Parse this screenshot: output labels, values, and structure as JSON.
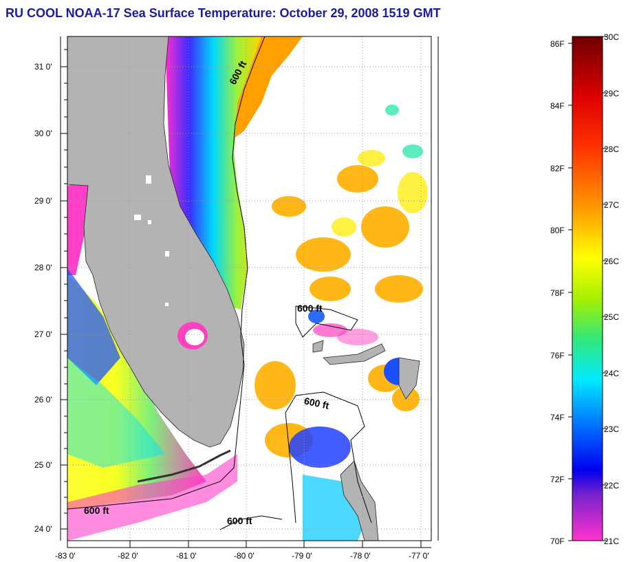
{
  "title": "RU COOL  NOAA-17  Sea Surface Temperature:  October 29, 2008 1519 GMT",
  "map": {
    "lat_ticks": [
      "31 0'",
      "30 0'",
      "29 0'",
      "28 0'",
      "27 0'",
      "26 0'",
      "25 0'",
      "24 0'"
    ],
    "lon_ticks": [
      "-83 0'",
      "-82 0'",
      "-81 0'",
      "-80 0'",
      "-79 0'",
      "-78 0'",
      "-77 0'"
    ],
    "contour_labels": [
      "600 ft",
      "600 ft",
      "600 ft",
      "600 ft",
      "600 ft"
    ]
  },
  "colorbar": {
    "fahrenheit": [
      "86F",
      "84F",
      "82F",
      "80F",
      "78F",
      "76F",
      "74F",
      "72F",
      "70F"
    ],
    "celsius": [
      "30C",
      "29C",
      "28C",
      "27C",
      "26C",
      "25C",
      "24C",
      "23C",
      "22C",
      "21C"
    ],
    "colors": [
      "#7a0000",
      "#ff0000",
      "#ff7000",
      "#ffff00",
      "#5ee000",
      "#00e5ff",
      "#0000ff",
      "#8800cc",
      "#ff2ecf"
    ]
  }
}
